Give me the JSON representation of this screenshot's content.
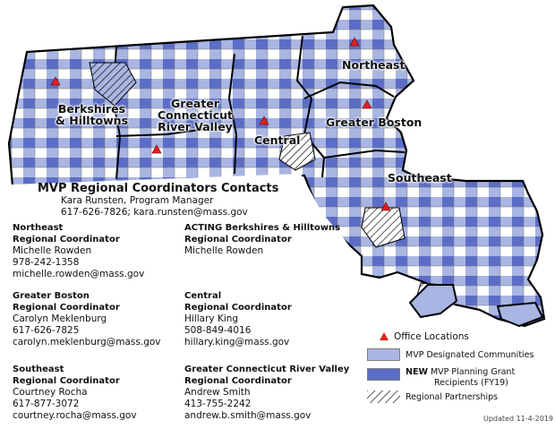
{
  "colors": {
    "designated": "#a9b5e2",
    "planning": "#5b6dc6",
    "border": "#000000",
    "office": "#e02020"
  },
  "regions": {
    "northeast": "Northeast",
    "berkshires_line1": "Berkshires",
    "berkshires_line2": "& Hilltowns",
    "gcrv_line1": "Greater",
    "gcrv_line2": "Connecticut",
    "gcrv_line3": "River Valley",
    "central": "Central",
    "greater_boston": "Greater Boston",
    "southeast": "Southeast"
  },
  "contacts": {
    "heading": "MVP Regional Coordinators Contacts",
    "manager": "Kara Runsten, Program Manager",
    "manager_contact": "617-626-7826; kara.runsten@mass.gov",
    "coordinators": [
      {
        "title1": "Northeast",
        "title2": "Regional Coordinator",
        "name": "Michelle Rowden",
        "phone": "978-242-1358",
        "email": "michelle.rowden@mass.gov"
      },
      {
        "title1": "ACTING Berkshires & Hilltowns",
        "title2": "Regional Coordinator",
        "name": "Michelle Rowden",
        "phone": "",
        "email": ""
      },
      {
        "title1": "Greater Boston",
        "title2": "Regional Coordinator",
        "name": "Carolyn Meklenburg",
        "phone": "617-626-7825",
        "email": "carolyn.meklenburg@mass.gov"
      },
      {
        "title1": "Central",
        "title2": "Regional Coordinator",
        "name": "Hillary King",
        "phone": "508-849-4016",
        "email": "hillary.king@mass.gov"
      },
      {
        "title1": "Southeast",
        "title2": "Regional Coordinator",
        "name": "Courtney Rocha",
        "phone": "617-877-3072",
        "email": "courtney.rocha@mass.gov"
      },
      {
        "title1": "Greater Connecticut River Valley",
        "title2": "Regional Coordinator",
        "name": "Andrew Smith",
        "phone": "413-755-2242",
        "email": "andrew.b.smith@mass.gov"
      }
    ]
  },
  "legend": {
    "office": "Office Locations",
    "designated": "MVP Designated Communities",
    "planning_new": "NEW",
    "planning_line1": "MVP Planning Grant",
    "planning_line2": "Recipients (FY19)",
    "partnerships": "Regional Partnerships"
  },
  "updated": "Updated 11-4-2019"
}
